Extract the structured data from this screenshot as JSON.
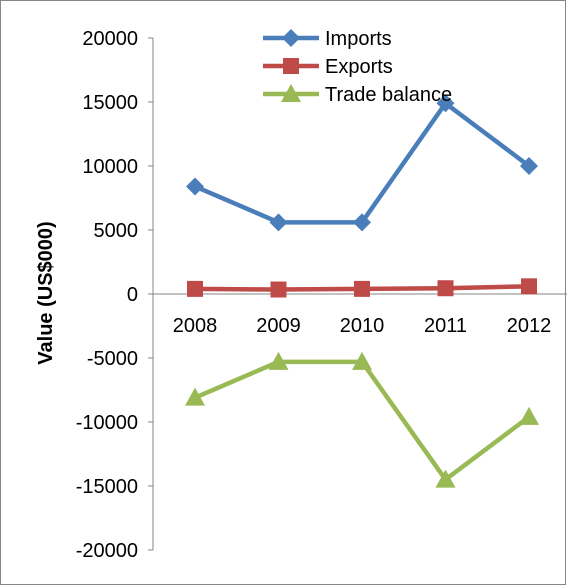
{
  "chart_data": {
    "type": "line",
    "title": "",
    "xlabel": "",
    "ylabel": "Value (US$000)",
    "categories": [
      "2008",
      "2009",
      "2010",
      "2011",
      "2012"
    ],
    "ylim": [
      -20000,
      20000
    ],
    "yticks": [
      20000,
      15000,
      10000,
      5000,
      0,
      -5000,
      -10000,
      -15000,
      -20000
    ],
    "grid": false,
    "legend": "top-center",
    "series": [
      {
        "name": "Imports",
        "values": [
          8400,
          5600,
          5600,
          14900,
          10000
        ],
        "color": "#4a7ebb",
        "marker": "diamond"
      },
      {
        "name": "Exports",
        "values": [
          400,
          350,
          400,
          450,
          600
        ],
        "color": "#be4b48",
        "marker": "square"
      },
      {
        "name": "Trade balance",
        "values": [
          -8100,
          -5300,
          -5300,
          -14500,
          -9600
        ],
        "color": "#98b954",
        "marker": "triangle"
      }
    ]
  }
}
